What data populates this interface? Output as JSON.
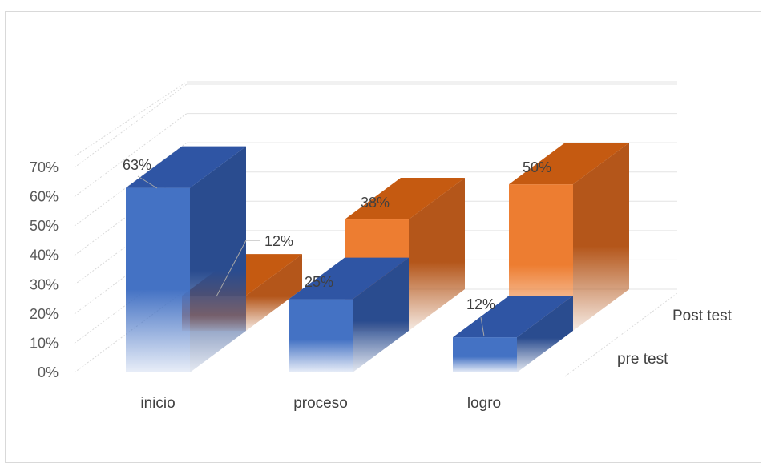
{
  "chart_data": {
    "type": "bar",
    "title": "",
    "categories": [
      "inicio",
      "proceso",
      "logro"
    ],
    "series": [
      {
        "name": "pre test",
        "values": [
          63,
          25,
          12
        ],
        "labels": [
          "63%",
          "25%",
          "12%"
        ]
      },
      {
        "name": "Post test",
        "values": [
          12,
          38,
          50
        ],
        "labels": [
          "12%",
          "38%",
          "50%"
        ]
      }
    ],
    "ylim": [
      0,
      70
    ],
    "yticks": [
      "0%",
      "10%",
      "20%",
      "30%",
      "40%",
      "50%",
      "60%",
      "70%"
    ],
    "grid": true,
    "colors": {
      "pre_front": "#4472c4",
      "pre_top": "#2f55a4",
      "pre_side": "#2a4c8f",
      "post_front": "#ed7d31",
      "post_top": "#c55a11",
      "post_side": "#b4561a"
    }
  }
}
